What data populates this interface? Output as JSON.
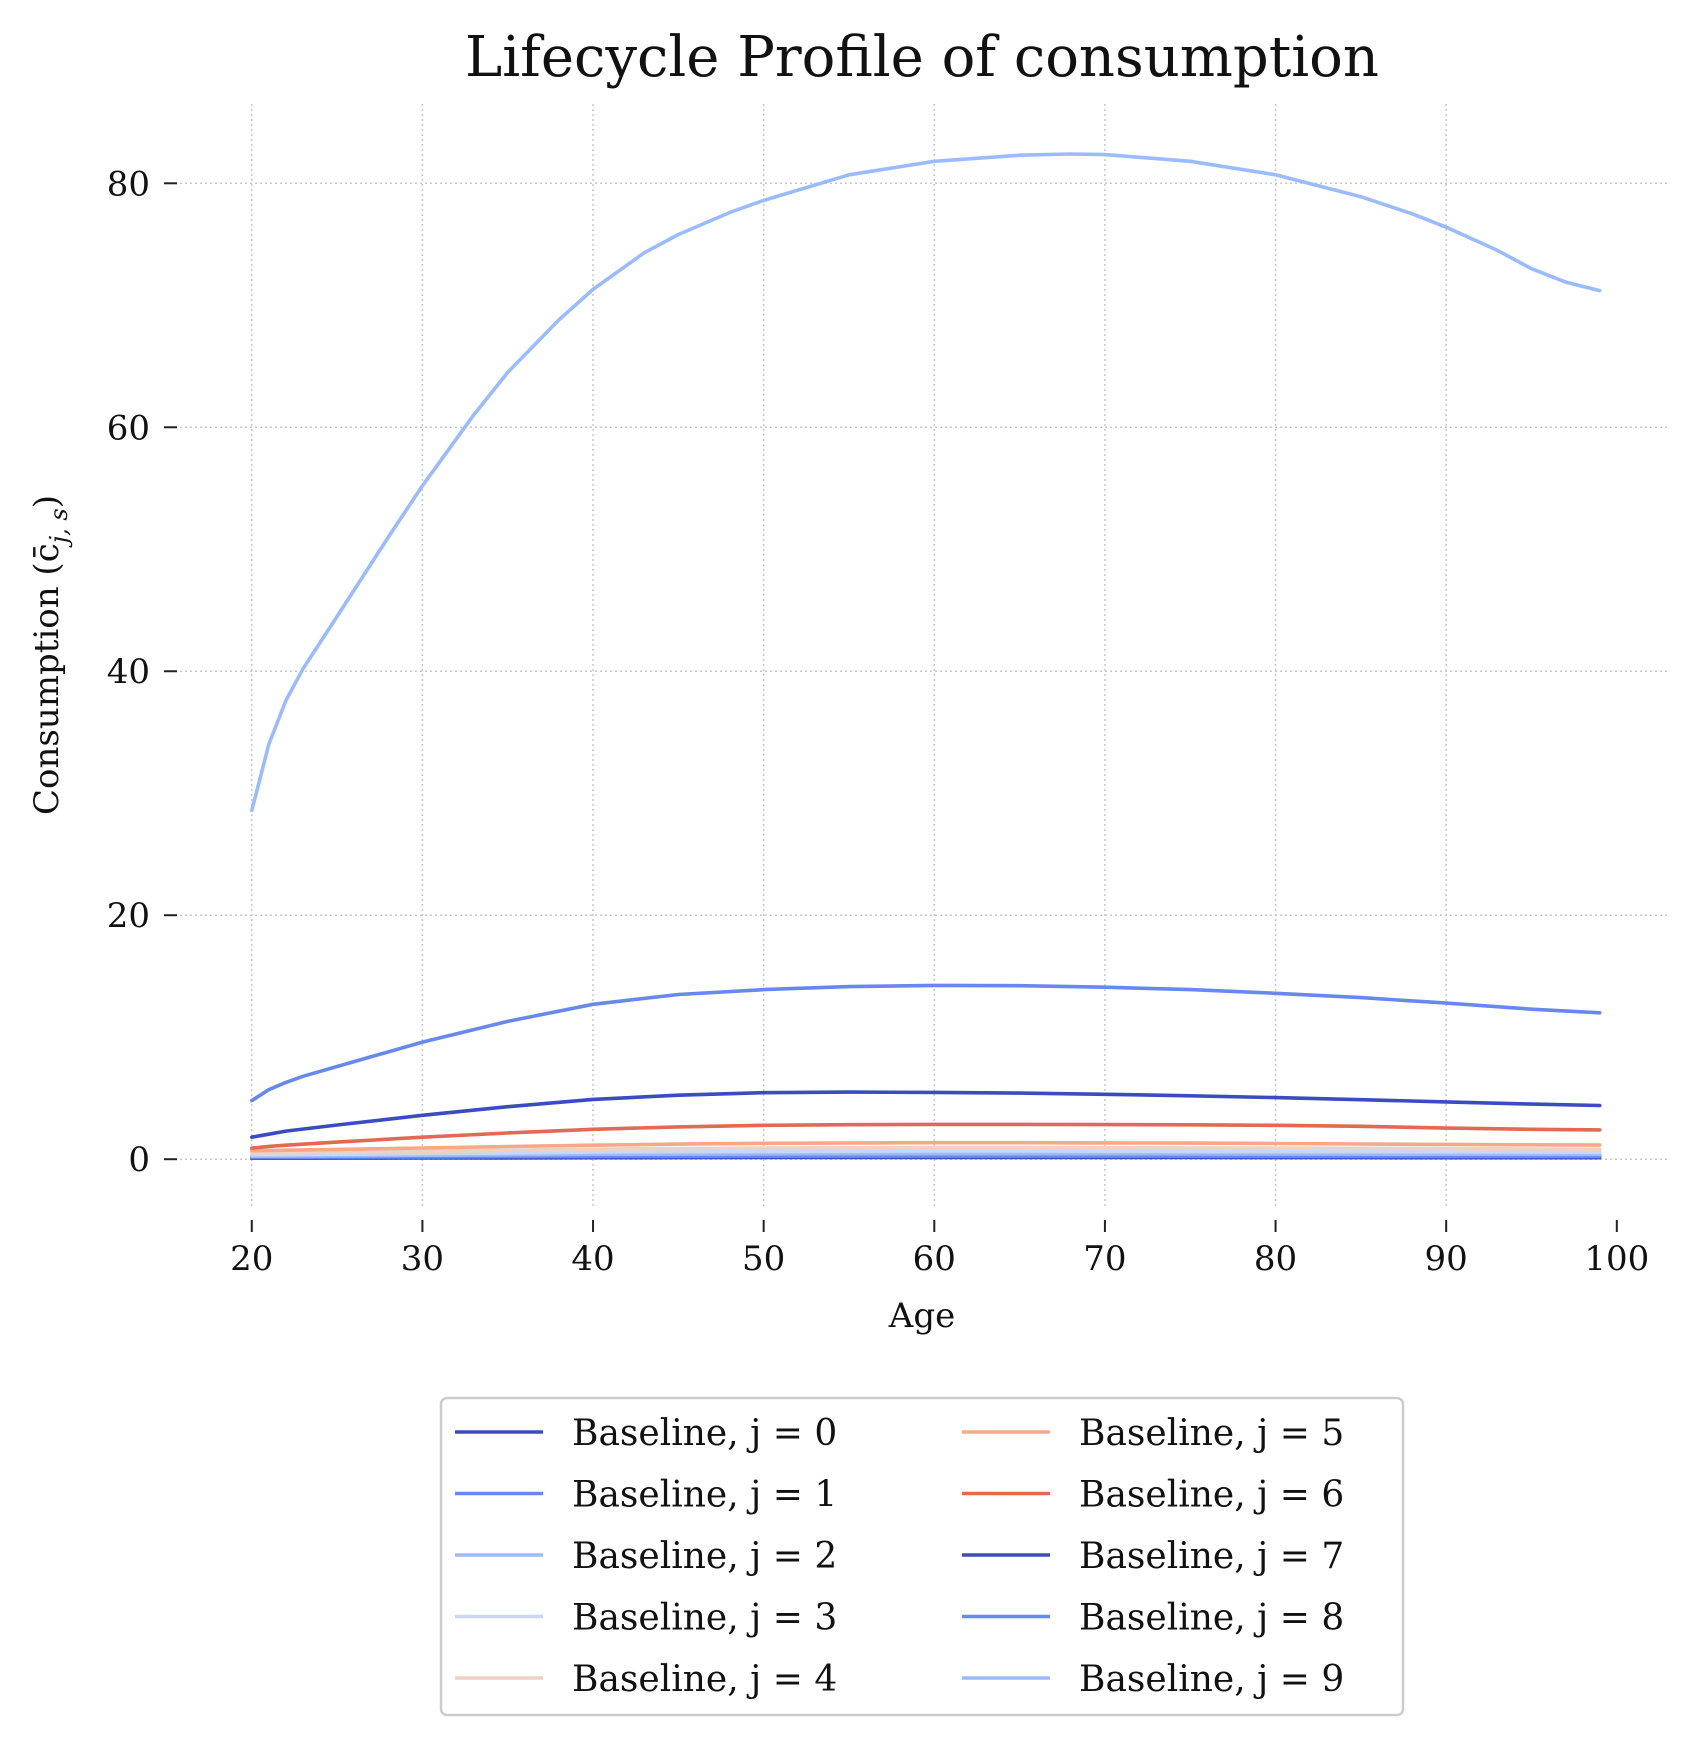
{
  "chart_data": {
    "type": "line",
    "title": "Lifecycle Profile of consumption",
    "xlabel": "Age",
    "ylabel": "Consumption (c̄",
    "ylabel_subscript": "j, s",
    "ylabel_close": ")",
    "xlim": [
      15.5,
      103
    ],
    "ylim": [
      -4,
      86.5
    ],
    "xticks": [
      20,
      30,
      40,
      50,
      60,
      70,
      80,
      90,
      100
    ],
    "yticks": [
      0,
      20,
      40,
      60,
      80
    ],
    "grid": true,
    "legend_position": "bottom-center",
    "legend_columns": 2,
    "series": [
      {
        "name": "Baseline, j = 0",
        "color": "#3b4cc0",
        "x": [
          20,
          25,
          30,
          35,
          40,
          45,
          50,
          55,
          60,
          65,
          70,
          75,
          80,
          85,
          90,
          95,
          99
        ],
        "y": [
          0.08,
          0.09,
          0.1,
          0.11,
          0.12,
          0.13,
          0.14,
          0.14,
          0.14,
          0.14,
          0.14,
          0.14,
          0.13,
          0.13,
          0.12,
          0.12,
          0.12
        ]
      },
      {
        "name": "Baseline, j = 1",
        "color": "#6788ee",
        "x": [
          20,
          25,
          30,
          35,
          40,
          45,
          50,
          55,
          60,
          65,
          70,
          75,
          80,
          85,
          90,
          95,
          99
        ],
        "y": [
          0.15,
          0.17,
          0.19,
          0.21,
          0.23,
          0.24,
          0.25,
          0.25,
          0.25,
          0.25,
          0.25,
          0.25,
          0.24,
          0.24,
          0.23,
          0.22,
          0.22
        ]
      },
      {
        "name": "Baseline, j = 2",
        "color": "#9abbff",
        "x": [
          20,
          25,
          30,
          35,
          40,
          45,
          50,
          55,
          60,
          65,
          70,
          75,
          80,
          85,
          90,
          95,
          99
        ],
        "y": [
          0.25,
          0.28,
          0.32,
          0.36,
          0.4,
          0.42,
          0.44,
          0.45,
          0.45,
          0.45,
          0.45,
          0.44,
          0.43,
          0.42,
          0.41,
          0.4,
          0.39
        ]
      },
      {
        "name": "Baseline, j = 3",
        "color": "#c9d7f0",
        "x": [
          20,
          25,
          30,
          35,
          40,
          45,
          50,
          55,
          60,
          65,
          70,
          75,
          80,
          85,
          90,
          95,
          99
        ],
        "y": [
          0.35,
          0.4,
          0.46,
          0.52,
          0.58,
          0.62,
          0.65,
          0.66,
          0.67,
          0.67,
          0.66,
          0.65,
          0.64,
          0.62,
          0.6,
          0.58,
          0.57
        ]
      },
      {
        "name": "Baseline, j = 4",
        "color": "#edd1c2",
        "x": [
          20,
          25,
          30,
          35,
          40,
          45,
          50,
          55,
          60,
          65,
          70,
          75,
          80,
          85,
          90,
          95,
          99
        ],
        "y": [
          0.5,
          0.58,
          0.66,
          0.74,
          0.82,
          0.88,
          0.92,
          0.94,
          0.95,
          0.95,
          0.94,
          0.93,
          0.91,
          0.89,
          0.86,
          0.84,
          0.82
        ]
      },
      {
        "name": "Baseline, j = 5",
        "color": "#f7a889",
        "x": [
          20,
          25,
          30,
          35,
          40,
          45,
          50,
          55,
          60,
          65,
          70,
          75,
          80,
          85,
          90,
          95,
          99
        ],
        "y": [
          0.7,
          0.8,
          0.92,
          1.04,
          1.15,
          1.24,
          1.3,
          1.33,
          1.35,
          1.35,
          1.34,
          1.32,
          1.29,
          1.25,
          1.21,
          1.18,
          1.16
        ]
      },
      {
        "name": "Baseline, j = 6",
        "color": "#e26952",
        "x": [
          20,
          21,
          22,
          25,
          30,
          35,
          40,
          45,
          50,
          55,
          60,
          65,
          70,
          75,
          80,
          85,
          90,
          95,
          99
        ],
        "y": [
          0.9,
          1.05,
          1.15,
          1.4,
          1.8,
          2.15,
          2.45,
          2.65,
          2.78,
          2.83,
          2.85,
          2.85,
          2.84,
          2.82,
          2.78,
          2.7,
          2.55,
          2.45,
          2.4
        ]
      },
      {
        "name": "Baseline, j = 7",
        "color": "#3b4cc0",
        "x": [
          20,
          21,
          22,
          25,
          30,
          35,
          40,
          45,
          50,
          55,
          60,
          65,
          70,
          75,
          80,
          85,
          90,
          95,
          99
        ],
        "y": [
          1.8,
          2.05,
          2.3,
          2.8,
          3.6,
          4.3,
          4.9,
          5.25,
          5.45,
          5.5,
          5.48,
          5.42,
          5.32,
          5.2,
          5.05,
          4.88,
          4.7,
          4.52,
          4.4
        ]
      },
      {
        "name": "Baseline, j = 8",
        "color": "#6788ee",
        "x": [
          20,
          21,
          22,
          23,
          25,
          30,
          35,
          40,
          45,
          50,
          55,
          60,
          65,
          70,
          75,
          80,
          85,
          90,
          95,
          99
        ],
        "y": [
          4.8,
          5.7,
          6.3,
          6.8,
          7.6,
          9.6,
          11.3,
          12.7,
          13.5,
          13.9,
          14.15,
          14.25,
          14.22,
          14.1,
          13.9,
          13.6,
          13.25,
          12.8,
          12.3,
          12.0
        ]
      },
      {
        "name": "Baseline, j = 9",
        "color": "#9abbff",
        "x": [
          20,
          21,
          22,
          23,
          25,
          28,
          30,
          33,
          35,
          38,
          40,
          43,
          45,
          48,
          50,
          55,
          60,
          65,
          68,
          70,
          75,
          80,
          85,
          88,
          90,
          93,
          95,
          97,
          99
        ],
        "y": [
          28.6,
          34.0,
          37.6,
          40.2,
          44.5,
          51.0,
          55.2,
          61.0,
          64.5,
          68.8,
          71.3,
          74.3,
          75.8,
          77.6,
          78.6,
          80.7,
          81.8,
          82.3,
          82.4,
          82.35,
          81.8,
          80.7,
          78.9,
          77.5,
          76.4,
          74.5,
          73.0,
          71.9,
          71.2
        ]
      }
    ]
  }
}
